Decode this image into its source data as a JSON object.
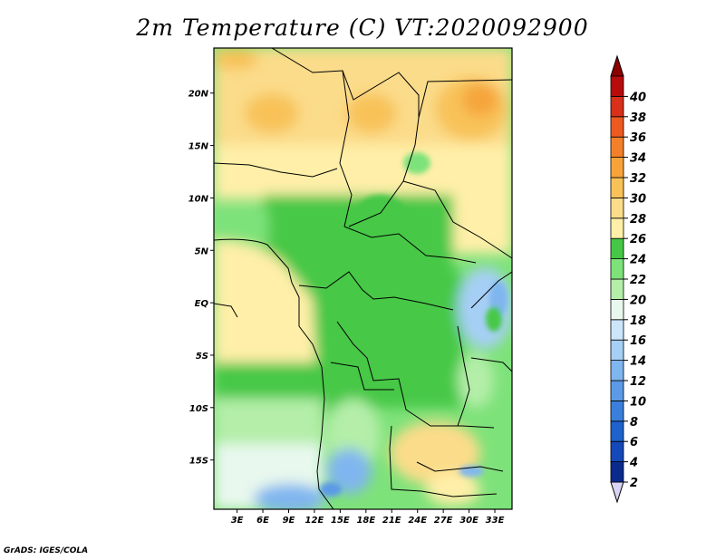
{
  "title": "2m Temperature (C) VT:2020092900",
  "credit": "GrADS: IGES/COLA",
  "map": {
    "lat_ticks": [
      {
        "label": "20N",
        "lat": 20
      },
      {
        "label": "15N",
        "lat": 15
      },
      {
        "label": "10N",
        "lat": 10
      },
      {
        "label": "5N",
        "lat": 5
      },
      {
        "label": "EQ",
        "lat": 0
      },
      {
        "label": "5S",
        "lat": -5
      },
      {
        "label": "10S",
        "lat": -10
      },
      {
        "label": "15S",
        "lat": -15
      }
    ],
    "lon_ticks": [
      {
        "label": "3E",
        "lon": 3
      },
      {
        "label": "6E",
        "lon": 6
      },
      {
        "label": "9E",
        "lon": 9
      },
      {
        "label": "12E",
        "lon": 12
      },
      {
        "label": "15E",
        "lon": 15
      },
      {
        "label": "18E",
        "lon": 18
      },
      {
        "label": "21E",
        "lon": 21
      },
      {
        "label": "24E",
        "lon": 24
      },
      {
        "label": "27E",
        "lon": 27
      },
      {
        "label": "30E",
        "lon": 30
      },
      {
        "label": "33E",
        "lon": 33
      }
    ],
    "lat_range": [
      -19.7,
      24.3
    ],
    "lon_range": [
      0.3,
      35
    ]
  },
  "colorbar": {
    "levels": [
      "2",
      "4",
      "6",
      "8",
      "10",
      "12",
      "14",
      "16",
      "18",
      "20",
      "22",
      "24",
      "26",
      "28",
      "30",
      "32",
      "34",
      "36",
      "38",
      "40"
    ],
    "colors": [
      "#0a2a8c",
      "#1548b8",
      "#1e62cc",
      "#3a7fdc",
      "#5c9ae6",
      "#80b6ef",
      "#a6cff5",
      "#cbe6fb",
      "#e8f8ee",
      "#b4eea8",
      "#7ee27a",
      "#46c846",
      "#ffefa8",
      "#fbdc8a",
      "#f8c258",
      "#f6a43a",
      "#f2802a",
      "#ec5a22",
      "#d8301a",
      "#b80c0c",
      "#8c0000"
    ],
    "under_color": "#d8d4f4",
    "over_color": "#8c0000"
  }
}
